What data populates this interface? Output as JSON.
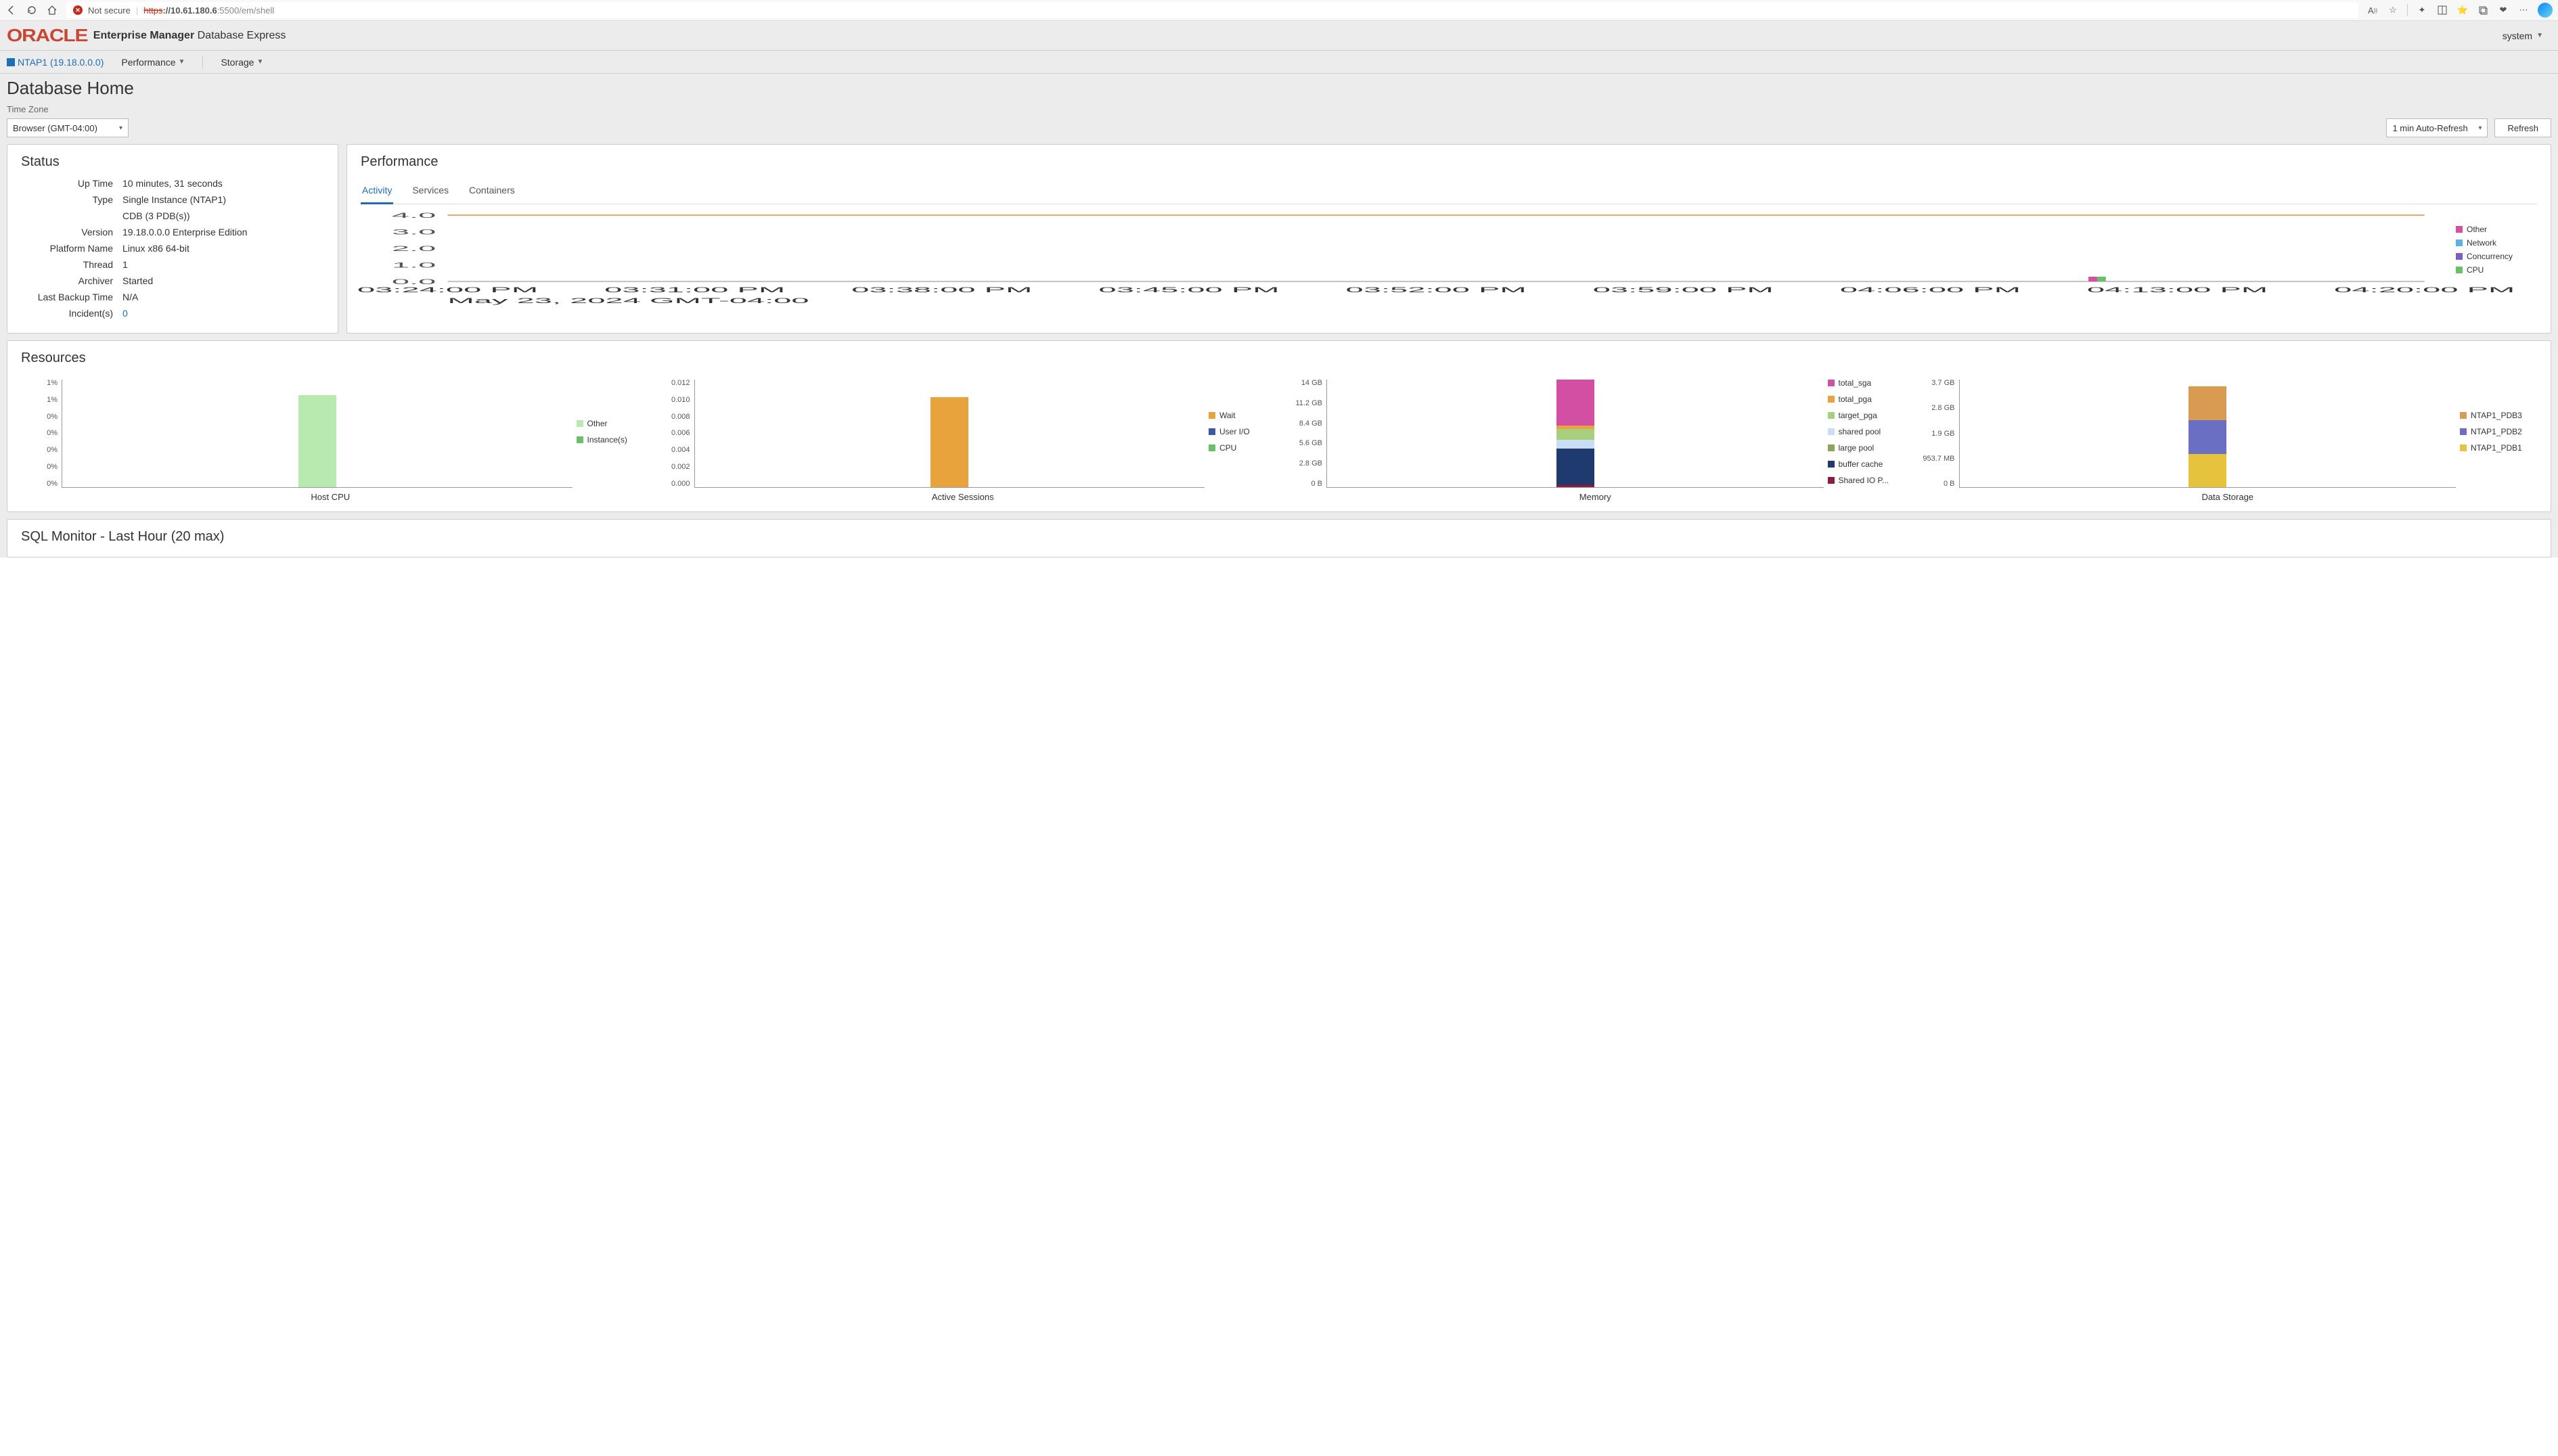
{
  "browser": {
    "not_secure_label": "Not secure",
    "url_proto": "https",
    "url_host": "://10.61.180.6",
    "url_path": ":5500/em/shell"
  },
  "header": {
    "logo_text": "ORACLE",
    "em_label_bold": "Enterprise Manager",
    "em_label_rest": " Database Express",
    "user_menu": "system"
  },
  "nav": {
    "db_name": "NTAP1 (19.18.0.0.0)",
    "perf": "Performance",
    "storage": "Storage"
  },
  "page": {
    "title": "Database Home",
    "tz_label": "Time Zone",
    "tz_value": "Browser (GMT-04:00)",
    "refresh_interval": "1 min Auto-Refresh",
    "refresh_btn": "Refresh"
  },
  "status": {
    "title": "Status",
    "rows": {
      "uptime_k": "Up Time",
      "uptime_v": "10 minutes, 31 seconds",
      "type_k": "Type",
      "type_v": "Single Instance (NTAP1)",
      "type_v2": "CDB (3 PDB(s))",
      "version_k": "Version",
      "version_v": "19.18.0.0.0 Enterprise Edition",
      "platform_k": "Platform Name",
      "platform_v": "Linux x86 64-bit",
      "thread_k": "Thread",
      "thread_v": "1",
      "archiver_k": "Archiver",
      "archiver_v": "Started",
      "backup_k": "Last Backup Time",
      "backup_v": "N/A",
      "incidents_k": "Incident(s)",
      "incidents_v": "0"
    }
  },
  "performance": {
    "title": "Performance",
    "tabs": {
      "activity": "Activity",
      "services": "Services",
      "containers": "Containers"
    },
    "yticks": [
      "4.0",
      "3.0",
      "2.0",
      "1.0",
      "0.0"
    ],
    "xticks": [
      "03:24:00 PM",
      "03:31:00 PM",
      "03:38:00 PM",
      "03:45:00 PM",
      "03:52:00 PM",
      "03:59:00 PM",
      "04:06:00 PM",
      "04:13:00 PM",
      "04:20:00 PM"
    ],
    "date_line": "May 23, 2024 GMT-04:00",
    "legend": {
      "other": {
        "label": "Other",
        "color": "#d24fa4"
      },
      "network": {
        "label": "Network",
        "color": "#5ab2e6"
      },
      "concurrency": {
        "label": "Concurrency",
        "color": "#7b5fc7"
      },
      "cpu": {
        "label": "CPU",
        "color": "#6abf69"
      }
    },
    "threshold_color": "#e08e3a",
    "baseline_color": "#888"
  },
  "resources": {
    "title": "Resources",
    "hostcpu": {
      "title": "Host CPU",
      "ylabels": [
        "1%",
        "1%",
        "0%",
        "0%",
        "0%",
        "0%",
        "0%"
      ],
      "bar_height_pct": 85,
      "bar_color": "#b8eab0",
      "legend": [
        {
          "label": "Other",
          "color": "#b8eab0"
        },
        {
          "label": "Instance(s)",
          "color": "#6abf69"
        }
      ]
    },
    "sessions": {
      "title": "Active Sessions",
      "ylabels": [
        "0.012",
        "0.010",
        "0.008",
        "0.006",
        "0.004",
        "0.002",
        "0.000"
      ],
      "bar_height_pct": 83,
      "bar_color": "#e8a33d",
      "legend": [
        {
          "label": "Wait",
          "color": "#e8a33d"
        },
        {
          "label": "User I/O",
          "color": "#3b5ba9"
        },
        {
          "label": "CPU",
          "color": "#6abf69"
        }
      ]
    },
    "memory": {
      "title": "Memory",
      "ylabels": [
        "14 GB",
        "11.2 GB",
        "8.4 GB",
        "5.6 GB",
        "2.8 GB",
        "0 B"
      ],
      "segments": [
        {
          "color": "#8e1b3a",
          "h": 2
        },
        {
          "color": "#1e3a6e",
          "h": 34
        },
        {
          "color": "#c9def2",
          "h": 8
        },
        {
          "color": "#a7cf7e",
          "h": 10
        },
        {
          "color": "#e8a33d",
          "h": 3
        },
        {
          "color": "#d24fa4",
          "h": 43
        }
      ],
      "legend": [
        {
          "label": "total_sga",
          "color": "#d24fa4"
        },
        {
          "label": "total_pga",
          "color": "#e8a33d"
        },
        {
          "label": "target_pga",
          "color": "#a7cf7e"
        },
        {
          "label": "shared pool",
          "color": "#c9def2"
        },
        {
          "label": "large pool",
          "color": "#8aa65a"
        },
        {
          "label": "buffer cache",
          "color": "#1e3a6e"
        },
        {
          "label": "Shared IO P...",
          "color": "#8e1b3a"
        }
      ]
    },
    "storage": {
      "title": "Data Storage",
      "ylabels": [
        "3.7 GB",
        "2.8 GB",
        "1.9 GB",
        "953.7 MB",
        "0 B"
      ],
      "segments": [
        {
          "color": "#e6c23d",
          "h": 33
        },
        {
          "color": "#6b6fc4",
          "h": 33
        },
        {
          "color": "#d99a52",
          "h": 34
        }
      ],
      "legend": [
        {
          "label": "NTAP1_PDB3",
          "color": "#d99a52"
        },
        {
          "label": "NTAP1_PDB2",
          "color": "#6b6fc4"
        },
        {
          "label": "NTAP1_PDB1",
          "color": "#e6c23d"
        }
      ]
    }
  },
  "sql_monitor": {
    "title": "SQL Monitor - Last Hour (20 max)"
  }
}
